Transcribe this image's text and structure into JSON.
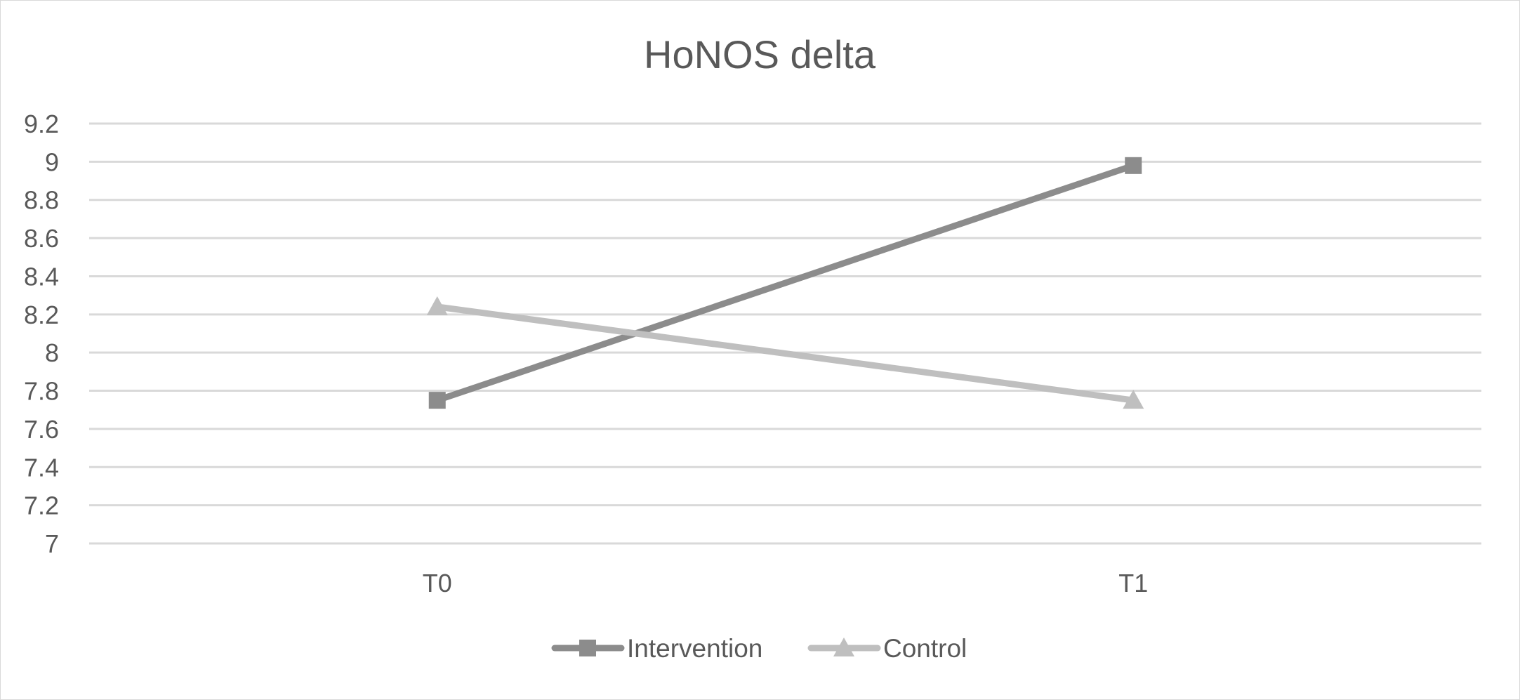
{
  "chart_data": {
    "type": "line",
    "title": "HoNOS delta",
    "xlabel": "",
    "ylabel": "",
    "categories": [
      "T0",
      "T1"
    ],
    "ylim": [
      7,
      9.2
    ],
    "yticks": [
      7,
      7.2,
      7.4,
      7.6,
      7.8,
      8,
      8.2,
      8.4,
      8.6,
      8.8,
      9,
      9.2
    ],
    "ytick_labels": [
      "7",
      "7.2",
      "7.4",
      "7.6",
      "7.8",
      "8",
      "8.2",
      "8.4",
      "8.6",
      "8.8",
      "9",
      "9.2"
    ],
    "grid": true,
    "legend_position": "bottom",
    "series": [
      {
        "name": "Intervention",
        "values": [
          7.75,
          8.98
        ],
        "color": "#8c8c8c",
        "marker": "square"
      },
      {
        "name": "Control",
        "values": [
          8.24,
          7.75
        ],
        "color": "#bfbfbf",
        "marker": "triangle"
      }
    ]
  }
}
